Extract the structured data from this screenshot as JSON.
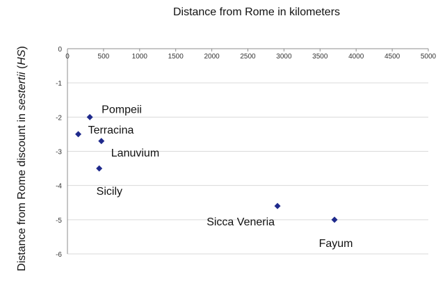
{
  "chart_data": {
    "type": "scatter",
    "title": "",
    "xlabel": "Distance from Rome in kilometers",
    "ylabel": {
      "prefix": "Distance from Rome discount in ",
      "italic": "sestertii",
      "suffix": " (",
      "unit_italic": "HS",
      "close": ")"
    },
    "xlim": [
      0,
      5000
    ],
    "ylim": [
      -6,
      0
    ],
    "x_ticks": [
      0,
      500,
      1000,
      1500,
      2000,
      2500,
      3000,
      3500,
      4000,
      4500,
      5000
    ],
    "y_ticks": [
      0,
      -1,
      -2,
      -3,
      -4,
      -5,
      -6
    ],
    "grid": true,
    "marker_color": "#1f2a8c",
    "points": [
      {
        "label": "Pompeii",
        "x": 310,
        "y": -2.0
      },
      {
        "label": "Terracina",
        "x": 150,
        "y": -2.5
      },
      {
        "label": "Lanuvium",
        "x": 470,
        "y": -2.7
      },
      {
        "label": "Sicily",
        "x": 440,
        "y": -3.5
      },
      {
        "label": "Sicca Veneria",
        "x": 2910,
        "y": -4.6
      },
      {
        "label": "Fayum",
        "x": 3700,
        "y": -5.0
      }
    ]
  }
}
